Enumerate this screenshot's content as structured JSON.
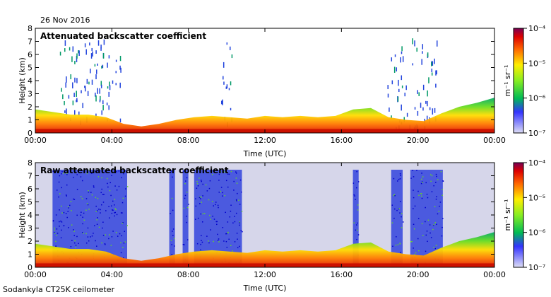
{
  "header": {
    "date": "26 Nov 2016"
  },
  "footer": {
    "site": "Sodankyla CT25K ceilometer"
  },
  "chart_data": [
    {
      "type": "heatmap",
      "title": "Attenuated backscatter coefficient",
      "xlabel": "Time (UTC)",
      "ylabel": "Height (km)",
      "x_ticks": [
        "00:00",
        "04:00",
        "08:00",
        "12:00",
        "16:00",
        "20:00",
        "00:00"
      ],
      "y_ticks": [
        "0",
        "1",
        "2",
        "3",
        "4",
        "5",
        "6",
        "7",
        "8"
      ],
      "xlim_hours": [
        0,
        24
      ],
      "ylim_km": [
        0,
        8
      ],
      "colorbar": {
        "label": "m⁻¹ sr⁻¹",
        "ticks": [
          "10⁻⁷",
          "10⁻⁶",
          "10⁻⁵",
          "10⁻⁴"
        ],
        "scale": "log",
        "range": [
          1e-07,
          0.0001
        ]
      },
      "cloud_top_km": [
        1.8,
        1.6,
        1.4,
        1.4,
        1.2,
        0.7,
        0.5,
        0.7,
        1.0,
        1.2,
        1.3,
        1.2,
        1.1,
        1.3,
        1.2,
        1.3,
        1.2,
        1.3,
        1.8,
        1.9,
        1.2,
        1.0,
        0.9,
        1.5,
        2.0,
        2.3,
        2.7
      ]
    },
    {
      "type": "heatmap",
      "title": "Raw attenuated backscatter coefficient",
      "xlabel": "Time (UTC)",
      "ylabel": "Height (km)",
      "x_ticks": [
        "00:00",
        "04:00",
        "08:00",
        "12:00",
        "16:00",
        "20:00",
        "00:00"
      ],
      "y_ticks": [
        "0",
        "1",
        "2",
        "3",
        "4",
        "5",
        "6",
        "7",
        "8"
      ],
      "xlim_hours": [
        0,
        24
      ],
      "ylim_km": [
        0,
        8
      ],
      "colorbar": {
        "label": "m⁻¹ sr⁻¹",
        "ticks": [
          "10⁻⁷",
          "10⁻⁶",
          "10⁻⁵",
          "10⁻⁴"
        ],
        "scale": "log",
        "range": [
          1e-07,
          0.0001
        ]
      },
      "noise_columns_hours": [
        [
          0.9,
          4.8
        ],
        [
          7.0,
          7.3
        ],
        [
          7.7,
          8.0
        ],
        [
          8.3,
          10.8
        ],
        [
          16.6,
          16.9
        ],
        [
          18.6,
          19.2
        ],
        [
          19.6,
          21.3
        ]
      ]
    }
  ]
}
